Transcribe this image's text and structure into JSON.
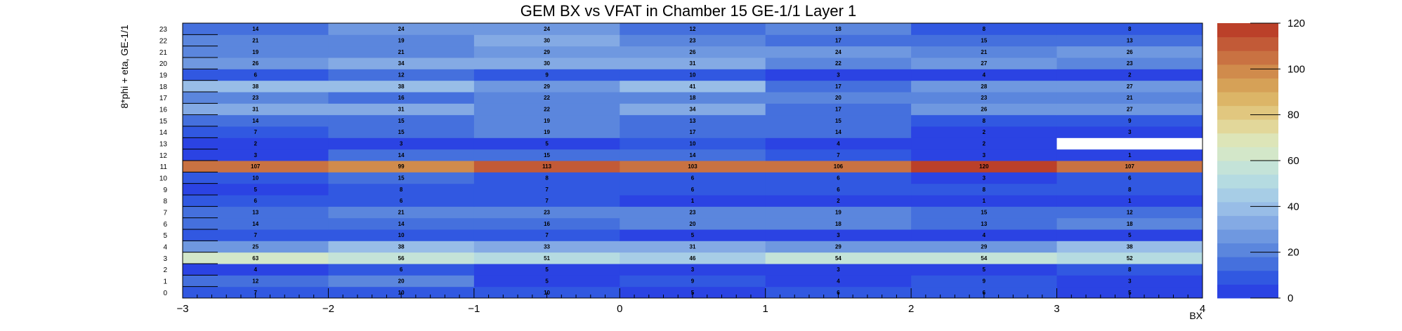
{
  "chart_data": {
    "type": "heatmap",
    "title": "GEM BX vs VFAT in Chamber 15 GE-1/1 Layer 1",
    "xlabel": "BX",
    "ylabel": "8*phi + eta, GE-1/1",
    "x_bins": [
      -2.5,
      -1.5,
      -0.5,
      0.5,
      1.5,
      2.5,
      3.5
    ],
    "xlim": [
      -3,
      4
    ],
    "x_ticks": [
      -3,
      -2,
      -1,
      0,
      1,
      2,
      3,
      4
    ],
    "y_bins": [
      0,
      1,
      2,
      3,
      4,
      5,
      6,
      7,
      8,
      9,
      10,
      11,
      12,
      13,
      14,
      15,
      16,
      17,
      18,
      19,
      20,
      21,
      22,
      23
    ],
    "y_ticks": [
      "0",
      "1",
      "2",
      "3",
      "4",
      "5",
      "6",
      "7",
      "8",
      "9",
      "10",
      "11",
      "12",
      "13",
      "14",
      "15",
      "16",
      "17",
      "18",
      "19",
      "20",
      "21",
      "22",
      "23"
    ],
    "zlim": [
      0,
      120
    ],
    "z_ticks": [
      0,
      20,
      40,
      60,
      80,
      100,
      120
    ],
    "values": [
      [
        7,
        10,
        10,
        5,
        6,
        6,
        5
      ],
      [
        12,
        20,
        5,
        9,
        4,
        9,
        3
      ],
      [
        4,
        6,
        5,
        3,
        3,
        5,
        8
      ],
      [
        63,
        56,
        51,
        46,
        54,
        54,
        52
      ],
      [
        25,
        38,
        33,
        31,
        29,
        29,
        38
      ],
      [
        7,
        10,
        7,
        5,
        3,
        4,
        5
      ],
      [
        14,
        14,
        16,
        20,
        18,
        13,
        18
      ],
      [
        13,
        21,
        23,
        23,
        19,
        15,
        12
      ],
      [
        6,
        6,
        7,
        1,
        2,
        1,
        1
      ],
      [
        5,
        8,
        7,
        6,
        6,
        8,
        8
      ],
      [
        10,
        15,
        8,
        6,
        6,
        3,
        6
      ],
      [
        107,
        99,
        113,
        103,
        106,
        120,
        107
      ],
      [
        3,
        14,
        15,
        14,
        7,
        3,
        1
      ],
      [
        2,
        3,
        5,
        10,
        4,
        2,
        null
      ],
      [
        7,
        15,
        19,
        17,
        14,
        2,
        3
      ],
      [
        14,
        15,
        19,
        13,
        15,
        8,
        9
      ],
      [
        31,
        31,
        22,
        34,
        17,
        26,
        27
      ],
      [
        23,
        16,
        22,
        18,
        20,
        23,
        21
      ],
      [
        38,
        38,
        29,
        41,
        17,
        28,
        27
      ],
      [
        6,
        12,
        9,
        10,
        3,
        4,
        2
      ],
      [
        26,
        34,
        30,
        31,
        22,
        27,
        23
      ],
      [
        19,
        21,
        29,
        26,
        24,
        21,
        26
      ],
      [
        21,
        19,
        30,
        23,
        17,
        15,
        13
      ],
      [
        14,
        24,
        24,
        12,
        18,
        8,
        8
      ]
    ],
    "colorscale": [
      "#2b43e3",
      "#3158e1",
      "#4570dd",
      "#5b86dd",
      "#6f98e0",
      "#84aae4",
      "#98bde7",
      "#a7cde6",
      "#b5dbe1",
      "#c4e3d8",
      "#d3e7c9",
      "#dde5b8",
      "#e2d79a",
      "#e1c77f",
      "#dcb567",
      "#d6a157",
      "#d08b4c",
      "#c97242",
      "#c25a37",
      "#bb4029"
    ],
    "colors": {
      "empty": "#ffffff",
      "frame": "#000000"
    }
  }
}
